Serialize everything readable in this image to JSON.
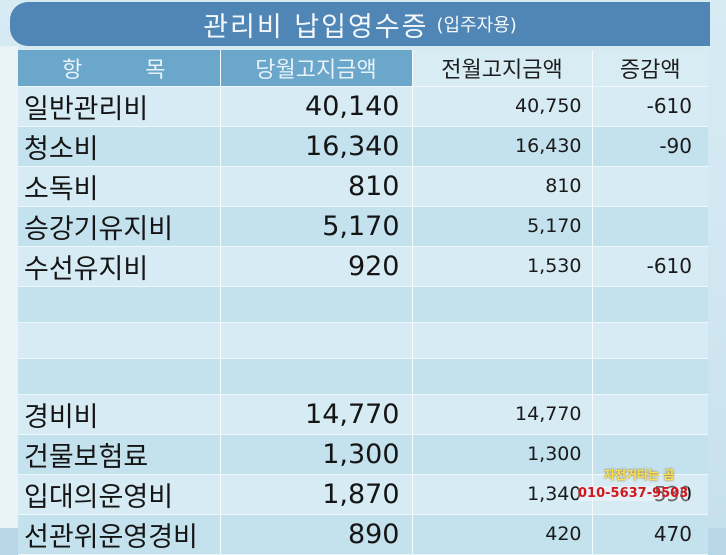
{
  "header": {
    "title": "관리비 납입영수증",
    "subtitle": "(입주자용)"
  },
  "table": {
    "headers": [
      "항 목",
      "당월고지금액",
      "전월고지금액",
      "증감액"
    ],
    "rows": [
      {
        "item": "일반관리비",
        "current": "40,140",
        "previous": "40,750",
        "change": "-610"
      },
      {
        "item": "청소비",
        "current": "16,340",
        "previous": "16,430",
        "change": "-90"
      },
      {
        "item": "소독비",
        "current": "810",
        "previous": "810",
        "change": ""
      },
      {
        "item": "승강기유지비",
        "current": "5,170",
        "previous": "5,170",
        "change": ""
      },
      {
        "item": "수선유지비",
        "current": "920",
        "previous": "1,530",
        "change": "-610"
      },
      {
        "item": "",
        "current": "",
        "previous": "",
        "change": ""
      },
      {
        "item": "",
        "current": "",
        "previous": "",
        "change": ""
      },
      {
        "item": "",
        "current": "",
        "previous": "",
        "change": ""
      },
      {
        "item": "경비비",
        "current": "14,770",
        "previous": "14,770",
        "change": ""
      },
      {
        "item": "건물보험료",
        "current": "1,300",
        "previous": "1,300",
        "change": ""
      },
      {
        "item": "입대의운영비",
        "current": "1,870",
        "previous": "1,340",
        "change": "530"
      },
      {
        "item": "선관위운영경비",
        "current": "890",
        "previous": "420",
        "change": "470"
      }
    ]
  },
  "watermark": {
    "name": "자전거타는 곰",
    "phone": "010-5637-9503"
  },
  "colors": {
    "banner": "#4f86b6",
    "header_row": "#6aa7cb",
    "row_light": "#d6ebf4",
    "row_dark": "#c4e1ee"
  }
}
